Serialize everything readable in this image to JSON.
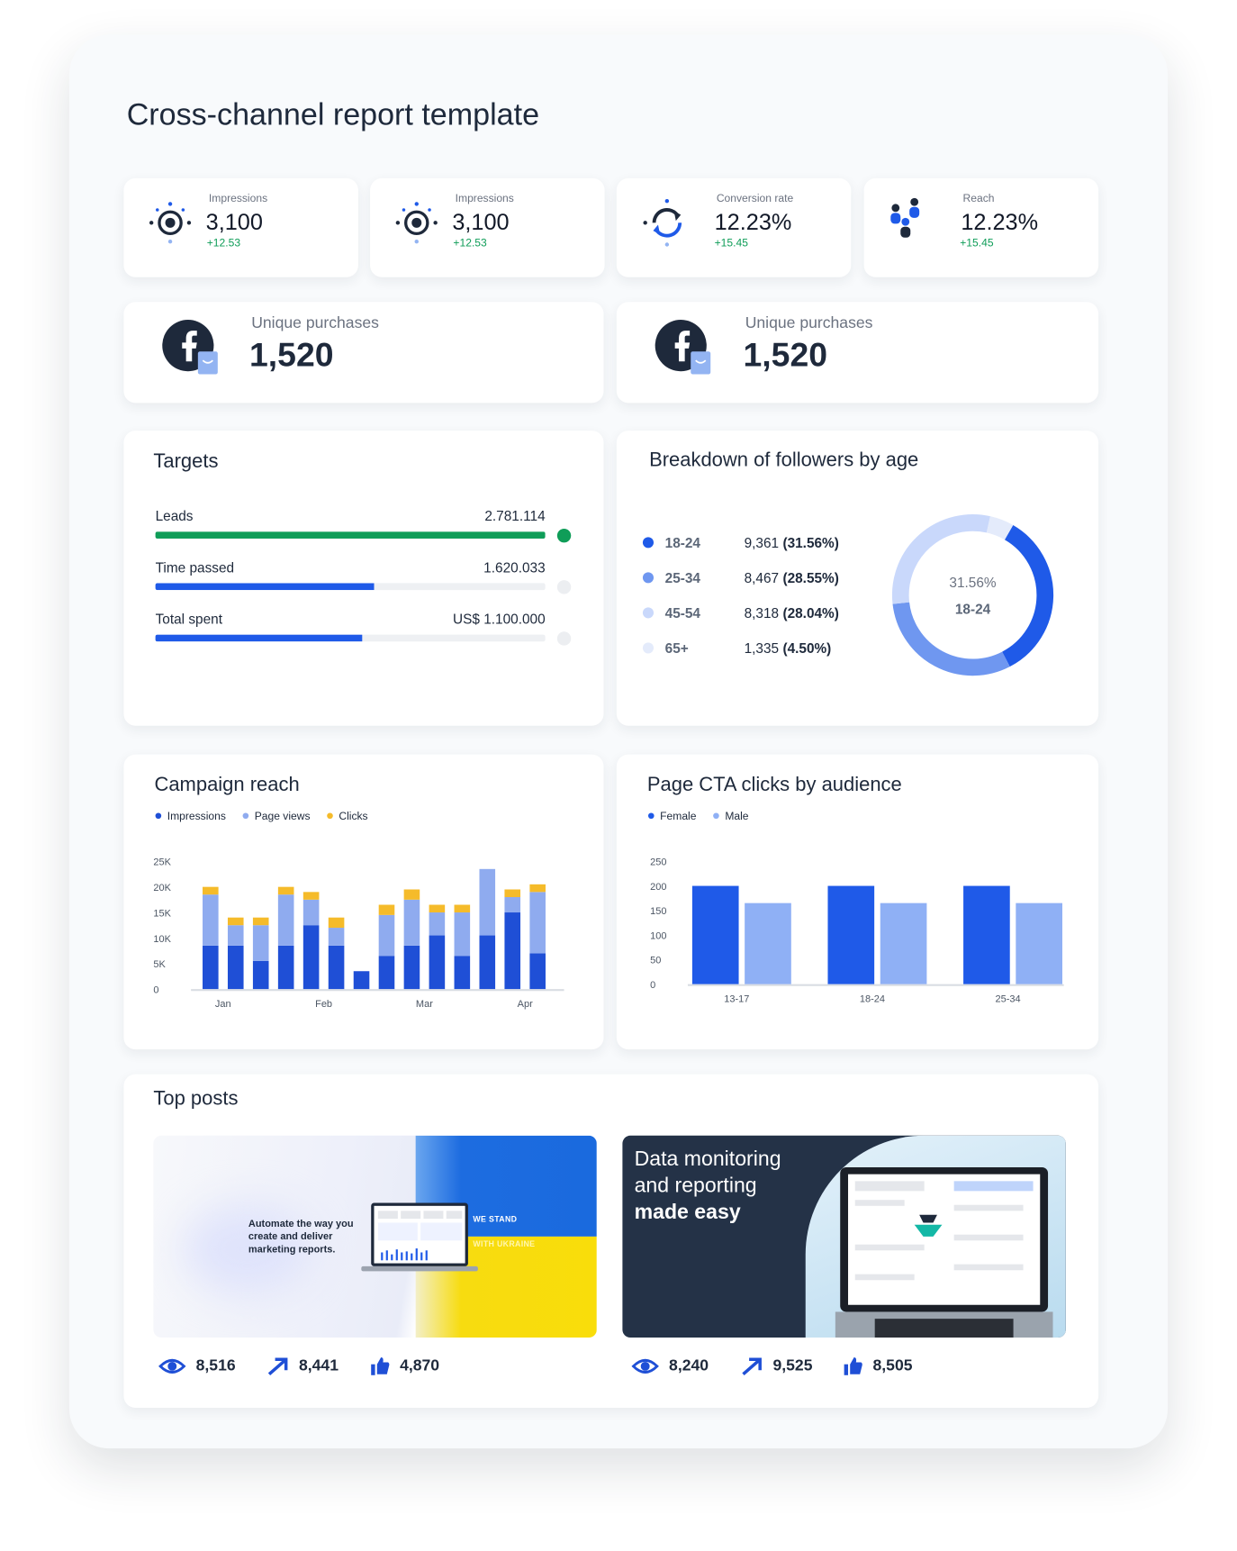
{
  "title": "Cross-channel report template",
  "kpis": [
    {
      "label": "Impressions",
      "value": "3,100",
      "change": "+12.53"
    },
    {
      "label": "Impressions",
      "value": "3,100",
      "change": "+12.53"
    },
    {
      "label": "Conversion rate",
      "value": "12.23%",
      "change": "+15.45"
    },
    {
      "label": "Reach",
      "value": "12.23%",
      "change": "+15.45"
    }
  ],
  "purchases": [
    {
      "label": "Unique purchases",
      "value": "1,520"
    },
    {
      "label": "Unique purchases",
      "value": "1,520"
    }
  ],
  "targets": {
    "title": "Targets",
    "rows": [
      {
        "label": "Leads",
        "value": "2.781.114",
        "progress": 100,
        "color": "#0f9d58",
        "dot_color": "#0f9d58"
      },
      {
        "label": "Time passed",
        "value": "1.620.033",
        "progress": 56,
        "color": "#1f5ae8",
        "dot_color": "#eceef1"
      },
      {
        "label": "Total spent",
        "value": "US$ 1.100.000",
        "progress": 53,
        "color": "#1f5ae8",
        "dot_color": "#eceef1"
      }
    ]
  },
  "chart_data": [
    {
      "type": "pie",
      "donut": true,
      "title": "Breakdown of followers by age",
      "categories": [
        "18-24",
        "25-34",
        "45-54",
        "65+"
      ],
      "counts": [
        "9,361",
        "8,467",
        "8,318",
        "1,335"
      ],
      "values": [
        31.56,
        28.55,
        28.04,
        4.5
      ],
      "value_labels": [
        "(31.56%)",
        "(28.55%)",
        "(28.04%)",
        "(4.50%)"
      ],
      "colors": [
        "#1f5ae8",
        "#6f97f0",
        "#c9d8fb",
        "#e4ebfb"
      ],
      "center_value": "31.56%"
    },
    {
      "type": "bar",
      "stacked": true,
      "title": "Campaign reach",
      "grid": false,
      "categories": [
        "Jan",
        null,
        null,
        null,
        "Feb",
        null,
        null,
        null,
        "Mar",
        null,
        null,
        null,
        "Apr",
        null
      ],
      "series": [
        {
          "name": "Impressions",
          "color": "#1f4fd6",
          "values": [
            8500,
            8500,
            5500,
            8500,
            12500,
            8500,
            3500,
            6500,
            8500,
            10500,
            6500,
            10500,
            15000,
            7000
          ]
        },
        {
          "name": "Page views",
          "color": "#8fabef",
          "values": [
            10000,
            4000,
            7000,
            10000,
            5000,
            3500,
            0,
            8000,
            9000,
            4500,
            8500,
            13000,
            3000,
            12000
          ]
        },
        {
          "name": "Clicks",
          "color": "#f5bb2a",
          "values": [
            1500,
            1500,
            1500,
            1500,
            1500,
            2000,
            0,
            2000,
            2000,
            1500,
            1500,
            0,
            1500,
            1500
          ]
        }
      ],
      "ylim": [
        0,
        25000
      ],
      "yticks": [
        0,
        {
          "value": 5000,
          "label": "5K"
        },
        {
          "value": 10000,
          "label": "10K"
        },
        {
          "value": 15000,
          "label": "15K"
        },
        {
          "value": 20000,
          "label": "20K"
        },
        {
          "value": 25000,
          "label": "25K"
        }
      ]
    },
    {
      "type": "bar",
      "stacked": false,
      "title": "Page CTA clicks by audience",
      "grid": false,
      "categories": [
        "13-17",
        "18-24",
        "25-34"
      ],
      "series": [
        {
          "name": "Female",
          "color": "#1f5ae8",
          "values": [
            200,
            200,
            200
          ]
        },
        {
          "name": "Male",
          "color": "#8fb0f5",
          "values": [
            165,
            165,
            165
          ]
        }
      ],
      "ylim": [
        0,
        250
      ],
      "yticks": [
        0,
        50,
        100,
        150,
        200,
        250
      ]
    }
  ],
  "top_posts": {
    "title": "Top posts",
    "posts": [
      {
        "image_text": "Automate the way you create and deliver marketing reports.",
        "banner_top": "WE STAND",
        "banner_bottom": "WITH UKRAINE",
        "views": "8,516",
        "shares": "8,441",
        "likes": "4,870"
      },
      {
        "headline": "Data monitoring and reporting",
        "headline_bold": "made easy",
        "views": "8,240",
        "shares": "9,525",
        "likes": "8,505"
      }
    ]
  }
}
